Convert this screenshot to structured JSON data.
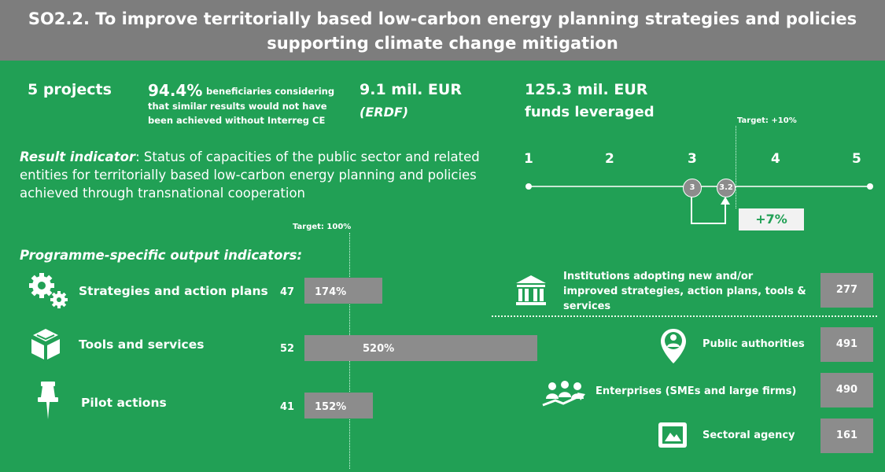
{
  "header": {
    "title_line1": "SO2.2. To improve territorially based low-carbon energy planning strategies and policies",
    "title_line2": "supporting climate change mitigation"
  },
  "stats": {
    "projects": "5 projects",
    "beneficiaries_pct": "94.4%",
    "beneficiaries_line1": "beneficiaries considering",
    "beneficiaries_line2": "that similar results would not have",
    "beneficiaries_line3": "been achieved without Interreg CE",
    "erdf_amount": "9.1 mil. EUR",
    "erdf_label": "(ERDF)",
    "leveraged_amount": "125.3 mil. EUR",
    "leveraged_label": "funds leveraged"
  },
  "result_indicator": {
    "label": "Result indicator",
    "line1": ": Status of capacities of the public sector and related",
    "line2": "entities for territorially based low-carbon energy planning and policies",
    "line3": "achieved through transnational cooperation"
  },
  "scale": {
    "ticks": [
      "1",
      "2",
      "3",
      "4",
      "5"
    ],
    "baseline": "3",
    "achieved": "3.2",
    "target_label": "Target: +10%",
    "change_label": "+7%"
  },
  "outputs": {
    "heading": "Programme-specific output indicators:",
    "target_label": "Target: 100%",
    "items": [
      {
        "label": "Strategies and action plans",
        "value": "47",
        "pct": "174%",
        "pct_value": 174
      },
      {
        "label": "Tools and services",
        "value": "52",
        "pct": "520%",
        "pct_value": 520
      },
      {
        "label": "Pilot actions",
        "value": "41",
        "pct": "152%",
        "pct_value": 152
      }
    ]
  },
  "institutions": {
    "label_line1": "Institutions adopting new and/or",
    "label_line2": "improved strategies, action plans, tools &",
    "label_line3": "services",
    "value": "277",
    "breakdown": [
      {
        "label": "Public authorities",
        "value": "491",
        "icon": "location-person-icon"
      },
      {
        "label": "Enterprises (SMEs and large firms)",
        "value": "490",
        "icon": "people-trend-icon"
      },
      {
        "label": "Sectoral agency",
        "value": "161",
        "icon": "picture-frame-icon"
      }
    ]
  },
  "colors": {
    "background": "#21a055",
    "header": "#7d7d7d",
    "bar": "#8c8c8c"
  }
}
